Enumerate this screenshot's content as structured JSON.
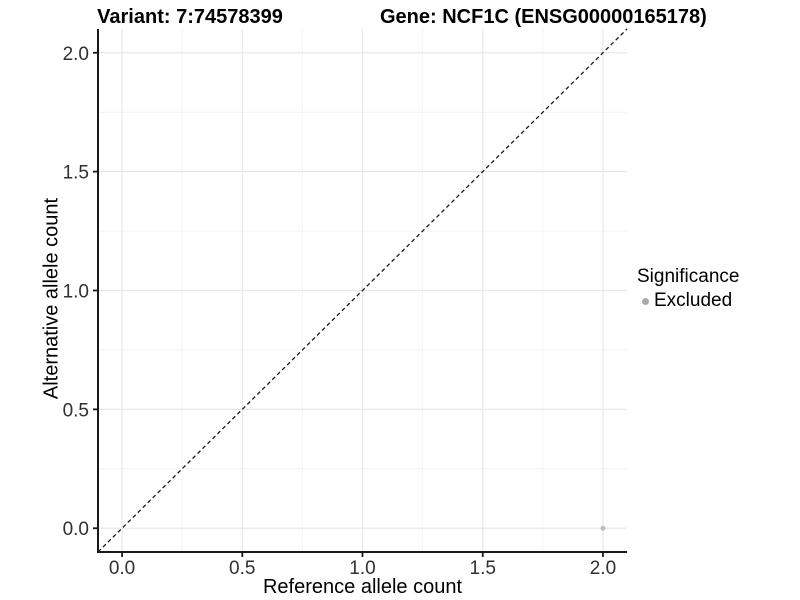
{
  "titles": {
    "variant": "Variant: 7:74578399",
    "gene": "Gene: NCF1C (ENSG00000165178)"
  },
  "chart_data": {
    "type": "scatter",
    "xlabel": "Reference allele count",
    "ylabel": "Alternative allele count",
    "xlim": [
      -0.1,
      2.1
    ],
    "ylim": [
      -0.1,
      2.1
    ],
    "xticks": {
      "values": [
        0.0,
        0.5,
        1.0,
        1.5,
        2.0
      ],
      "labels": [
        "0.0",
        "0.5",
        "1.0",
        "1.5",
        "2.0"
      ]
    },
    "yticks": {
      "values": [
        0.0,
        0.5,
        1.0,
        1.5,
        2.0
      ],
      "labels": [
        "0.0",
        "0.5",
        "1.0",
        "1.5",
        "2.0"
      ]
    },
    "minor_ticks": [
      0.25,
      0.75,
      1.25,
      1.75
    ],
    "grid": "major and minor gridlines on white background",
    "identity_line": {
      "style": "dashed",
      "slope": 1,
      "intercept": 0,
      "from": -0.1,
      "to": 2.1
    },
    "series": [
      {
        "name": "Excluded",
        "color": "#b3b3b3",
        "points": [
          {
            "x": 2.0,
            "y": 0.0
          }
        ]
      }
    ],
    "legend": {
      "title": "Significance",
      "position": "right",
      "items": [
        {
          "label": "Excluded",
          "color": "#a9a9a9"
        }
      ]
    }
  },
  "colors": {
    "background": "#ffffff",
    "grid_major": "#e8e8e8",
    "grid_minor": "#f4f4f4",
    "axis_line": "#1a1a1a",
    "tick_mark": "#1a1a1a",
    "tick_text": "#303030",
    "dashed_line": "#1a1a1a",
    "point": "#bfbfbf"
  }
}
